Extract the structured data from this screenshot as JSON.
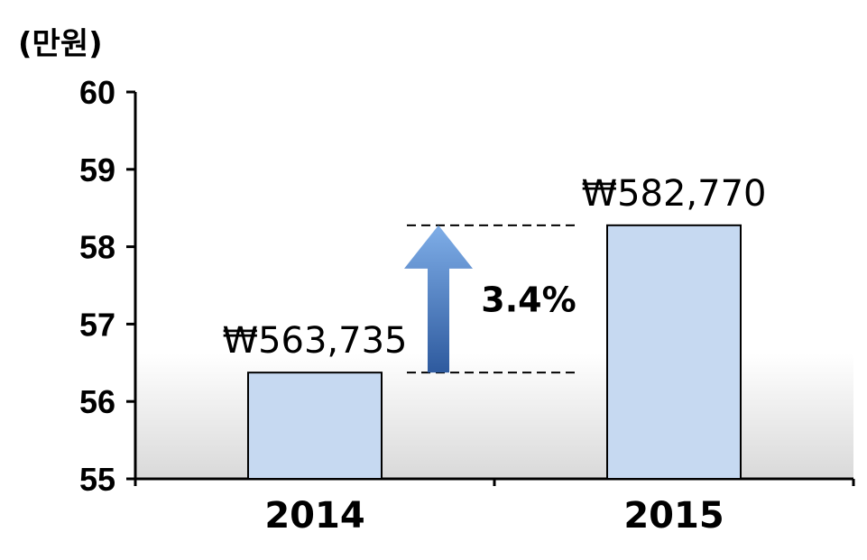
{
  "chart_data": {
    "type": "bar",
    "categories": [
      "2014",
      "2015"
    ],
    "values": [
      56.3735,
      58.277
    ],
    "data_labels": [
      "₩563,735",
      "₩582,770"
    ],
    "ylabel": "(만원)",
    "ylim": [
      55,
      60
    ],
    "yticks": [
      "55",
      "56",
      "57",
      "58",
      "59",
      "60"
    ],
    "annotation": {
      "text": "3.4%",
      "from_category": "2014",
      "to_category": "2015"
    },
    "colors": {
      "bar_fill": "#c6d9f1",
      "bar_stroke": "#000000",
      "arrow_top": "#7faee8",
      "arrow_bottom": "#2e5a9e",
      "plot_gradient_bottom": "#d9d9d9"
    },
    "grid": false
  }
}
